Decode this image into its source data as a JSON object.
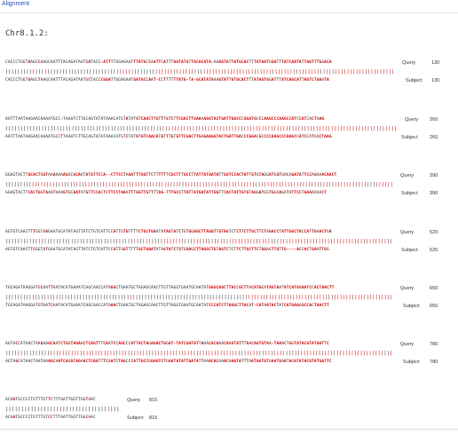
{
  "header": {
    "tab_label": "Alignment"
  },
  "alignment": {
    "title": "Chr8.1.2:",
    "query_label": "Query",
    "subject_label": "Subject",
    "blocks": [
      {
        "query_end": "130",
        "subject_end": "130",
        "query": "CACCCTGGTAAGCCAAGCAATTTACAGATAATGATACC-ATTTTGGAGAATTTATGCCAATTCATTTGGTATGTTACACATA-AAAGTATTATGCACTTTGTAATGGATTTATCAATATTAGTTTGAACA",
        "subject": "CACCCTGGTGAGCTAAGCAATTTACAGATAATGCTACCCGGATTGGAGAATGATGCCAAT-CCTTTTTTATG-TA-GCATATAAAGTATTGTGCACTTTATAGTGGATTTATCAGCATTAGTCTGAATA"
      },
      {
        "query_end": "260",
        "subject_end": "260",
        "query": "AATTTAATAAGAACAAAATGCC-TAAATCTTGCAGTATATAAACATGTATATGTCAACTTGTTTGTCTTCGACTTGAAAAGGTACTGATTGACCCGGATGCCCAAGCCCAAGCCATCCATCACTAAG",
        "subject": "AATTTAATAAGAACAAAATGCCTTAAATCTTGCAGTATATAAACATGTCTATATGTCAACATGTTTGTGTTCGACTTGAGAAGGTACTGATTGACCCGGACGCCCCAAGCCCAAGCCATCCATCACTAAG"
      },
      {
        "query_end": "390",
        "subject_end": "390",
        "query": "GGAGTACTTGCACTGGTAAAAAAAGGCGCAATATGTTCCA--CTTCCTAGATTTGGTTCTTTTTTCGCTTTGCCTTATTATGATATTGGTCCACTATTGTGTAGGATGGTGACAGATATTCCAGAAACAACT",
        "subject": "GGAGTACTTCACTGGTAAATAAAGTGCAATATGTTCCACTCTTCCTAAATTTGGTTGTTTTAG-TTTGCCTTATTATGATATTGGTTCACTATTGTGTAGGATGGTGGCAGATATTCCTGAAACAACT"
      },
      {
        "query_end": "520",
        "subject_end": "520",
        "query": "AGTGTCAACTTTGGTAAGAATGCATATAGTTATCTGTCATTCCATTGTGTTTTCTGCTGAATATAGTATCTGTGGAGCTTAGGTTGTAGTCTCTTCTTGCTTCTAGACCTATTGGCTACCATTGAACTGA",
        "subject": "AGTGTCAACTTCGGTATGAATGCATATAGTTATCTGTCATTCCGTTGGTTTTTGCTGAATATAGTATCTGTGGAGCTTAGGCTGTAGTCTCTTCTTGCTTCTGGACTTGTTG----ACCACTGAATTGG"
      },
      {
        "query_end": "650",
        "subject_end": "650",
        "query": "TGCAGATAAGGATGCAATTAATACATGAAATCAGCAACCATAGGCTGAATGCTAGAGCAACTTGTTAGGTGAATGCAATATGGGCAGCTTACCGCTTACATGCATAGTAATATCATGAAATCCACTAACTT",
        "subject": "TGCAGATAAGGATGTAATCAATACATGAAATCAGCAACCATAAACTGAATGCTAGAGCAACTTGTTAGGTGAATGCAATATCCCATCTTAGGCTTACAT-CATAATACTATCATGAAAGCCACTAACTT"
      },
      {
        "query_end": "780",
        "subject_end": "780",
        "query": "AGTACCATAACTAAGAAGCAATCTGGTAGAACTCAGTTTCAATCCAGCCCATTACTAGAGACTGGAT-TATCGATATTAAACACAAACAAGTATTTAACAGTGTAA-TAAACTGGTATACGTATGATTC",
        "subject": "AGTAGCATAACTAATAAAGCAATCAGGTAGAACTCAGTTTCAATCTAGCCCATTGCCGGAGTCTGGATATATTGATATTAAACACAAACAAGTATTTAATAGTGTAAATGAATAGGTATACGTATGATTC"
      },
      {
        "query_end": "815",
        "subject_end": "815",
        "query": "ACAGTGCCCCTGTTTGTTCTTTAATTGGTTGGTAAC",
        "subject": "ACAATGCCCCTGTTTGTCCTTTAATTGGTTGGCAAC"
      }
    ]
  }
}
